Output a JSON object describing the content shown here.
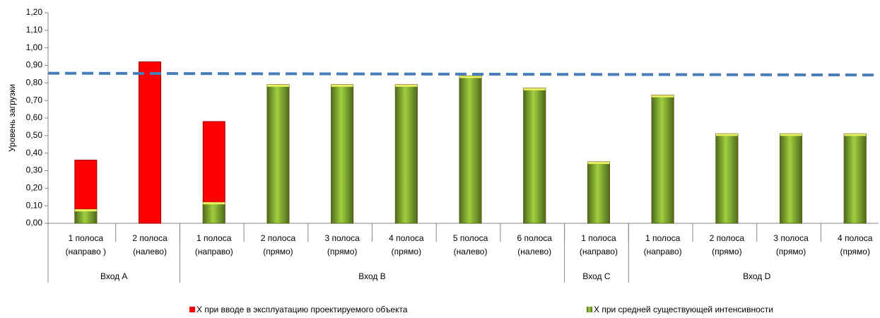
{
  "chart_data": {
    "type": "bar",
    "y_label": "Уровень загрузки",
    "categories": [
      [
        "1 полоса",
        "(направо )"
      ],
      [
        "2 полоса",
        "(налево)"
      ],
      [
        "1 полоса",
        "(направо)"
      ],
      [
        "2 полоса",
        "(прямо)"
      ],
      [
        "3 полоса",
        "(прямо)"
      ],
      [
        "4 полоса",
        "(прямо)"
      ],
      [
        "5 полоса",
        "(налево)"
      ],
      [
        "6 полоса",
        "(налево)"
      ],
      [
        "1 полоса",
        "(направо)"
      ],
      [
        "1 полоса",
        "(направо)"
      ],
      [
        "2 полоса",
        "(прямо)"
      ],
      [
        "3 полоса",
        "(прямо)"
      ],
      [
        "4 полоса",
        "(прямо)"
      ]
    ],
    "groups": [
      {
        "name": "Вход A",
        "span": 2
      },
      {
        "name": "Вход B",
        "span": 6
      },
      {
        "name": "Вход C",
        "span": 1
      },
      {
        "name": "Вход D",
        "span": 4
      }
    ],
    "series": [
      {
        "name": "X при вводе в эксплуатацию проектируемого объекта",
        "color": "#ff0000",
        "values": [
          0.36,
          0.92,
          0.58,
          0.79,
          0.79,
          0.79,
          0.84,
          0.77,
          0.35,
          0.73,
          0.51,
          0.51,
          0.51
        ]
      },
      {
        "name": "X при средней существующей интенсивности",
        "color": "#8db63c",
        "values": [
          0.08,
          null,
          0.12,
          0.79,
          0.79,
          0.79,
          0.84,
          0.77,
          0.35,
          0.73,
          0.51,
          0.51,
          0.51
        ]
      }
    ],
    "reference_line": {
      "values": [
        0.855,
        0.845
      ],
      "color": "#4a7ebb"
    },
    "ylim": [
      0,
      1.2
    ],
    "yticks": [
      {
        "value": 0,
        "label": "0,00"
      },
      {
        "value": 0.1,
        "label": "0,10"
      },
      {
        "value": 0.2,
        "label": "0,20"
      },
      {
        "value": 0.3,
        "label": "0,30"
      },
      {
        "value": 0.4,
        "label": "0,40"
      },
      {
        "value": 0.5,
        "label": "0,50"
      },
      {
        "value": 0.6,
        "label": "0,60"
      },
      {
        "value": 0.7,
        "label": "0,70"
      },
      {
        "value": 0.8,
        "label": "0,80"
      },
      {
        "value": 0.9,
        "label": "0,90"
      },
      {
        "value": 1.0,
        "label": "1,00"
      },
      {
        "value": 1.1,
        "label": "1,10"
      },
      {
        "value": 1.2,
        "label": "1,20"
      }
    ]
  }
}
